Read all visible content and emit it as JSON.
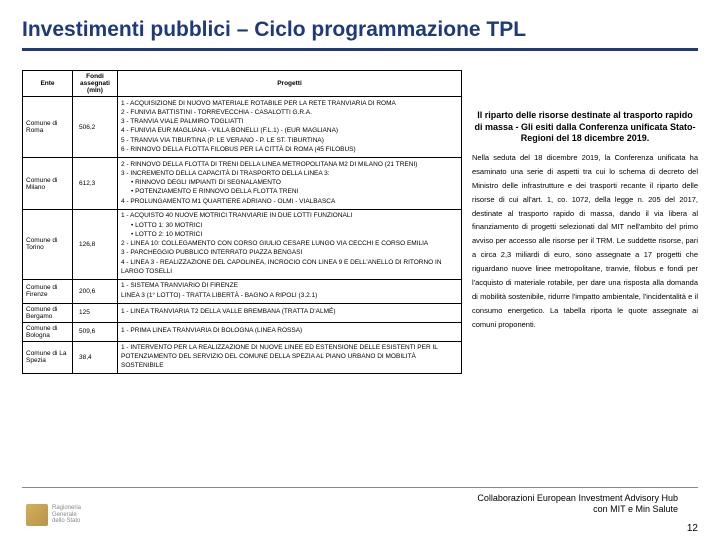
{
  "title": "Investimenti pubblici – Ciclo programmazione TPL",
  "table": {
    "headers": {
      "ente": "Ente",
      "fondi": "Fondi assegnati (mln)",
      "progetti": "Progetti"
    },
    "rows": [
      {
        "ente": "Comune di Roma",
        "fondi": "506,2",
        "progetti": [
          "1 - ACQUISIZIONE DI NUOVO MATERIALE ROTABILE PER LA RETE TRANVIARIA DI ROMA",
          "2 - FUNIVIA BATTISTINI - TORREVECCHIA - CASALOTTI G.R.A.",
          "3 - TRANVIA VIALE PALMIRO TOGLIATTI",
          "4 - FUNIVIA EUR MAGLIANA - VILLA BONELLI (F.L.1) - (EUR MAGLIANA)",
          "5 - TRANVIA VIA TIBURTINA (P. LE VERANO - P. LE ST. TIBURTINA)",
          "6 - RINNOVO DELLA FLOTTA FILOBUS PER LA CITTÀ DI ROMA (45 FILOBUS)"
        ]
      },
      {
        "ente": "Comune di Milano",
        "fondi": "612,3",
        "progetti": [
          "2 - RINNOVO DELLA FLOTTA DI TRENI DELLA LINEA METROPOLITANA M2 DI MILANO (21 TRENI)",
          "3 - INCREMENTO DELLA CAPACITÀ DI TRASPORTO DELLA LINEA 3:",
          "•   RINNOVO DEGLI IMPIANTI DI SEGNALAMENTO",
          "•   POTENZIAMENTO E RINNOVO DELLA FLOTTA TRENI",
          "4 - PROLUNGAMENTO M1 QUARTIERE ADRIANO - OLMI - VIALBASCA"
        ]
      },
      {
        "ente": "Comune di Torino",
        "fondi": "126,8",
        "progetti": [
          "1 - ACQUISTO 40 NUOVE MOTRICI TRANVIARIE IN DUE LOTTI FUNZIONALI",
          "•   LOTTO 1: 30 MOTRICI",
          "•   LOTTO 2: 10 MOTRICI",
          "2 - LINEA 10: COLLEGAMENTO CON CORSO GIULIO CESARE LUNGO VIA CECCHI E CORSO EMILIA",
          "3 - PARCHEGGIO PUBBLICO INTERRATO PIAZZA BENGASI",
          "4 - LINEA 3 - REALIZZAZIONE DEL CAPOLINEA, INCROCIO CON LINEA 9 E DELL'ANELLO DI RITORNO IN LARGO TOSELLI"
        ]
      },
      {
        "ente": "Comune di Firenze",
        "fondi": "200,6",
        "progetti": [
          "1 - SISTEMA TRANVIARIO DI FIRENZE",
          "LINEA 3 (1° LOTTO) - TRATTA LIBERTÀ - BAGNO A RIPOLI (3.2.1)"
        ]
      },
      {
        "ente": "Comune di Bergamo",
        "fondi": "125",
        "progetti": [
          "1 - LINEA TRANVIARIA T2 DELLA VALLE BREMBANA (TRATTA D'ALMÉ)"
        ]
      },
      {
        "ente": "Comune di Bologna",
        "fondi": "509,6",
        "progetti": [
          "1 - PRIMA LINEA TRANVIARIA DI BOLOGNA (LINEA ROSSA)"
        ]
      },
      {
        "ente": "Comune di La Spezia",
        "fondi": "38,4",
        "progetti": [
          "1 - INTERVENTO PER LA REALIZZAZIONE DI NUOVE LINEE ED ESTENSIONE DELLE ESISTENTI PER IL POTENZIAMENTO DEL SERVIZIO DEL COMUNE DELLA SPEZIA AL PIANO URBANO DI MOBILITÀ SOSTENIBILE"
        ]
      }
    ]
  },
  "sidebar": {
    "heading": "Il riparto delle risorse destinate al trasporto rapido di massa - Gli esiti dalla Conferenza unificata Stato-Regioni del 18 dicembre 2019.",
    "body": "Nella seduta del 18 dicembre 2019, la Conferenza unificata ha esaminato una serie di aspetti tra cui lo schema di decreto del Ministro delle infrastrutture e dei trasporti recante il riparto delle risorse di cui all'art. 1, co. 1072, della legge n. 205 del 2017, destinate al trasporto rapido di massa, dando il via libera al finanziamento di progetti selezionati dal MIT nell'ambito del primo avviso per accesso alle risorse per il TRM. Le suddette risorse, pari a circa 2,3 miliardi di euro, sono assegnate a 17 progetti che riguardano nuove linee metropolitane, tranvie, filobus e fondi per l'acquisto di materiale rotabile, per dare una risposta alla domanda di mobilità sostenibile, ridurre l'impatto ambientale, l'incidentalità e il consumo energetico. La tabella riporta le quote assegnate ai comuni proponenti."
  },
  "footer": {
    "logo_lines": [
      "Ragioneria",
      "Generale",
      "dello Stato"
    ],
    "note_line1": "Collaborazioni European Investment Advisory Hub",
    "note_line2": "con MIT e Min Salute",
    "page": "12"
  }
}
